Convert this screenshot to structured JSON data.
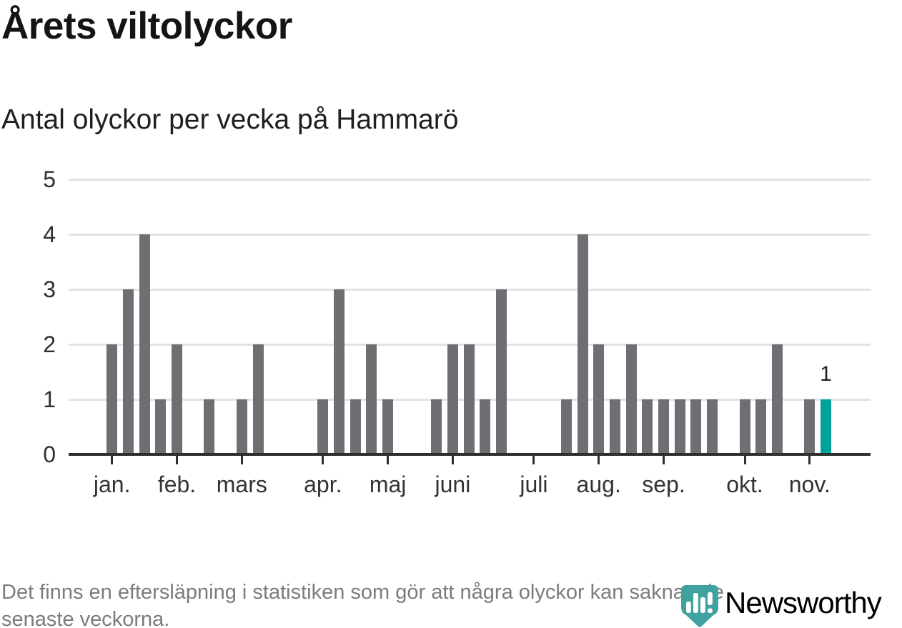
{
  "header": {
    "title": "Årets viltolyckor",
    "subtitle": "Antal olyckor per vecka på Hammarö"
  },
  "chart_data": {
    "type": "bar",
    "title": "Årets viltolyckor",
    "subtitle": "Antal olyckor per vecka på Hammarö",
    "x_type": "week_of_year",
    "ylim": [
      0,
      5
    ],
    "yticks": [
      0,
      1,
      2,
      3,
      4,
      5
    ],
    "grid": "horizontal",
    "legend": "none",
    "values": [
      2,
      3,
      4,
      1,
      2,
      0,
      1,
      0,
      1,
      2,
      0,
      0,
      0,
      1,
      3,
      1,
      2,
      1,
      0,
      0,
      1,
      2,
      2,
      1,
      3,
      0,
      0,
      0,
      1,
      4,
      2,
      1,
      2,
      1,
      1,
      1,
      1,
      1,
      0,
      1,
      1,
      2,
      0,
      1,
      1
    ],
    "month_ticks": [
      {
        "label": "jan.",
        "week": 1
      },
      {
        "label": "feb.",
        "week": 5
      },
      {
        "label": "mars",
        "week": 9
      },
      {
        "label": "apr.",
        "week": 14
      },
      {
        "label": "maj",
        "week": 18
      },
      {
        "label": "juni",
        "week": 22
      },
      {
        "label": "juli",
        "week": 27
      },
      {
        "label": "aug.",
        "week": 31
      },
      {
        "label": "sep.",
        "week": 35
      },
      {
        "label": "okt.",
        "week": 40
      },
      {
        "label": "nov.",
        "week": 44
      }
    ],
    "highlight_last_bar": true,
    "last_bar_label": "1",
    "colors": {
      "bar": "#6f6e73",
      "highlight": "#00a39a",
      "grid": "#e3e3e3",
      "axis": "#2f2f2f"
    }
  },
  "footer": {
    "line1": "Det finns en eftersläpning i statistiken som gör att några olyckor kan saknas de",
    "line2": "senaste veckorna."
  },
  "logo": {
    "wordmark": "Newsworthy",
    "icon": "newsworthy-bubble-chart-icon",
    "wordmark_color": "#2ba49e",
    "icon_color": "#3fa29e"
  }
}
